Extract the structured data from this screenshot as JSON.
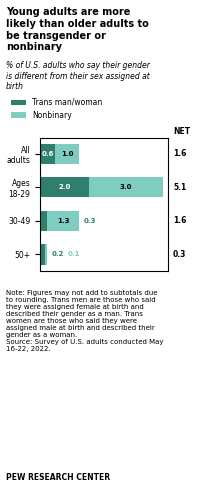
{
  "chart_data": {
    "type": "bar",
    "orientation": "horizontal",
    "stacked": true,
    "title": "Young adults are more\nlikely than older adults to\nbe transgender or\nnonbinary",
    "subtitle": "% of U.S. adults who say their gender\nis different from their sex assigned at\nbirth",
    "categories": [
      "All\nadults",
      "Ages\n18-29",
      "30-49",
      "50+"
    ],
    "series": [
      {
        "name": "Trans man/woman",
        "color": "#2e7f6e",
        "values": [
          0.6,
          2.0,
          0.3,
          0.2
        ]
      },
      {
        "name": "Nonbinary",
        "color": "#7ecdc0",
        "values": [
          1.0,
          3.0,
          1.3,
          0.1
        ]
      }
    ],
    "xlim": [
      0,
      5.2
    ],
    "xticks": [],
    "tick_labels": "y",
    "data_labels": true,
    "legend": "upper left",
    "net": {
      "label": "NET",
      "values": [
        1.6,
        5.1,
        1.6,
        0.3
      ]
    },
    "annotations": [
      "Note: Figures may not add to subtotals due\nto rounding. Trans men are those who said\nthey were assigned female at birth and\ndescribed their gender as a man. Trans\nwomen are those who said they were\nassigned male at birth and described their\ngender as a woman.\nSource: Survey of U.S. adults conducted May\n16-22, 2022.",
      "PEW RESEARCH CENTER"
    ]
  }
}
